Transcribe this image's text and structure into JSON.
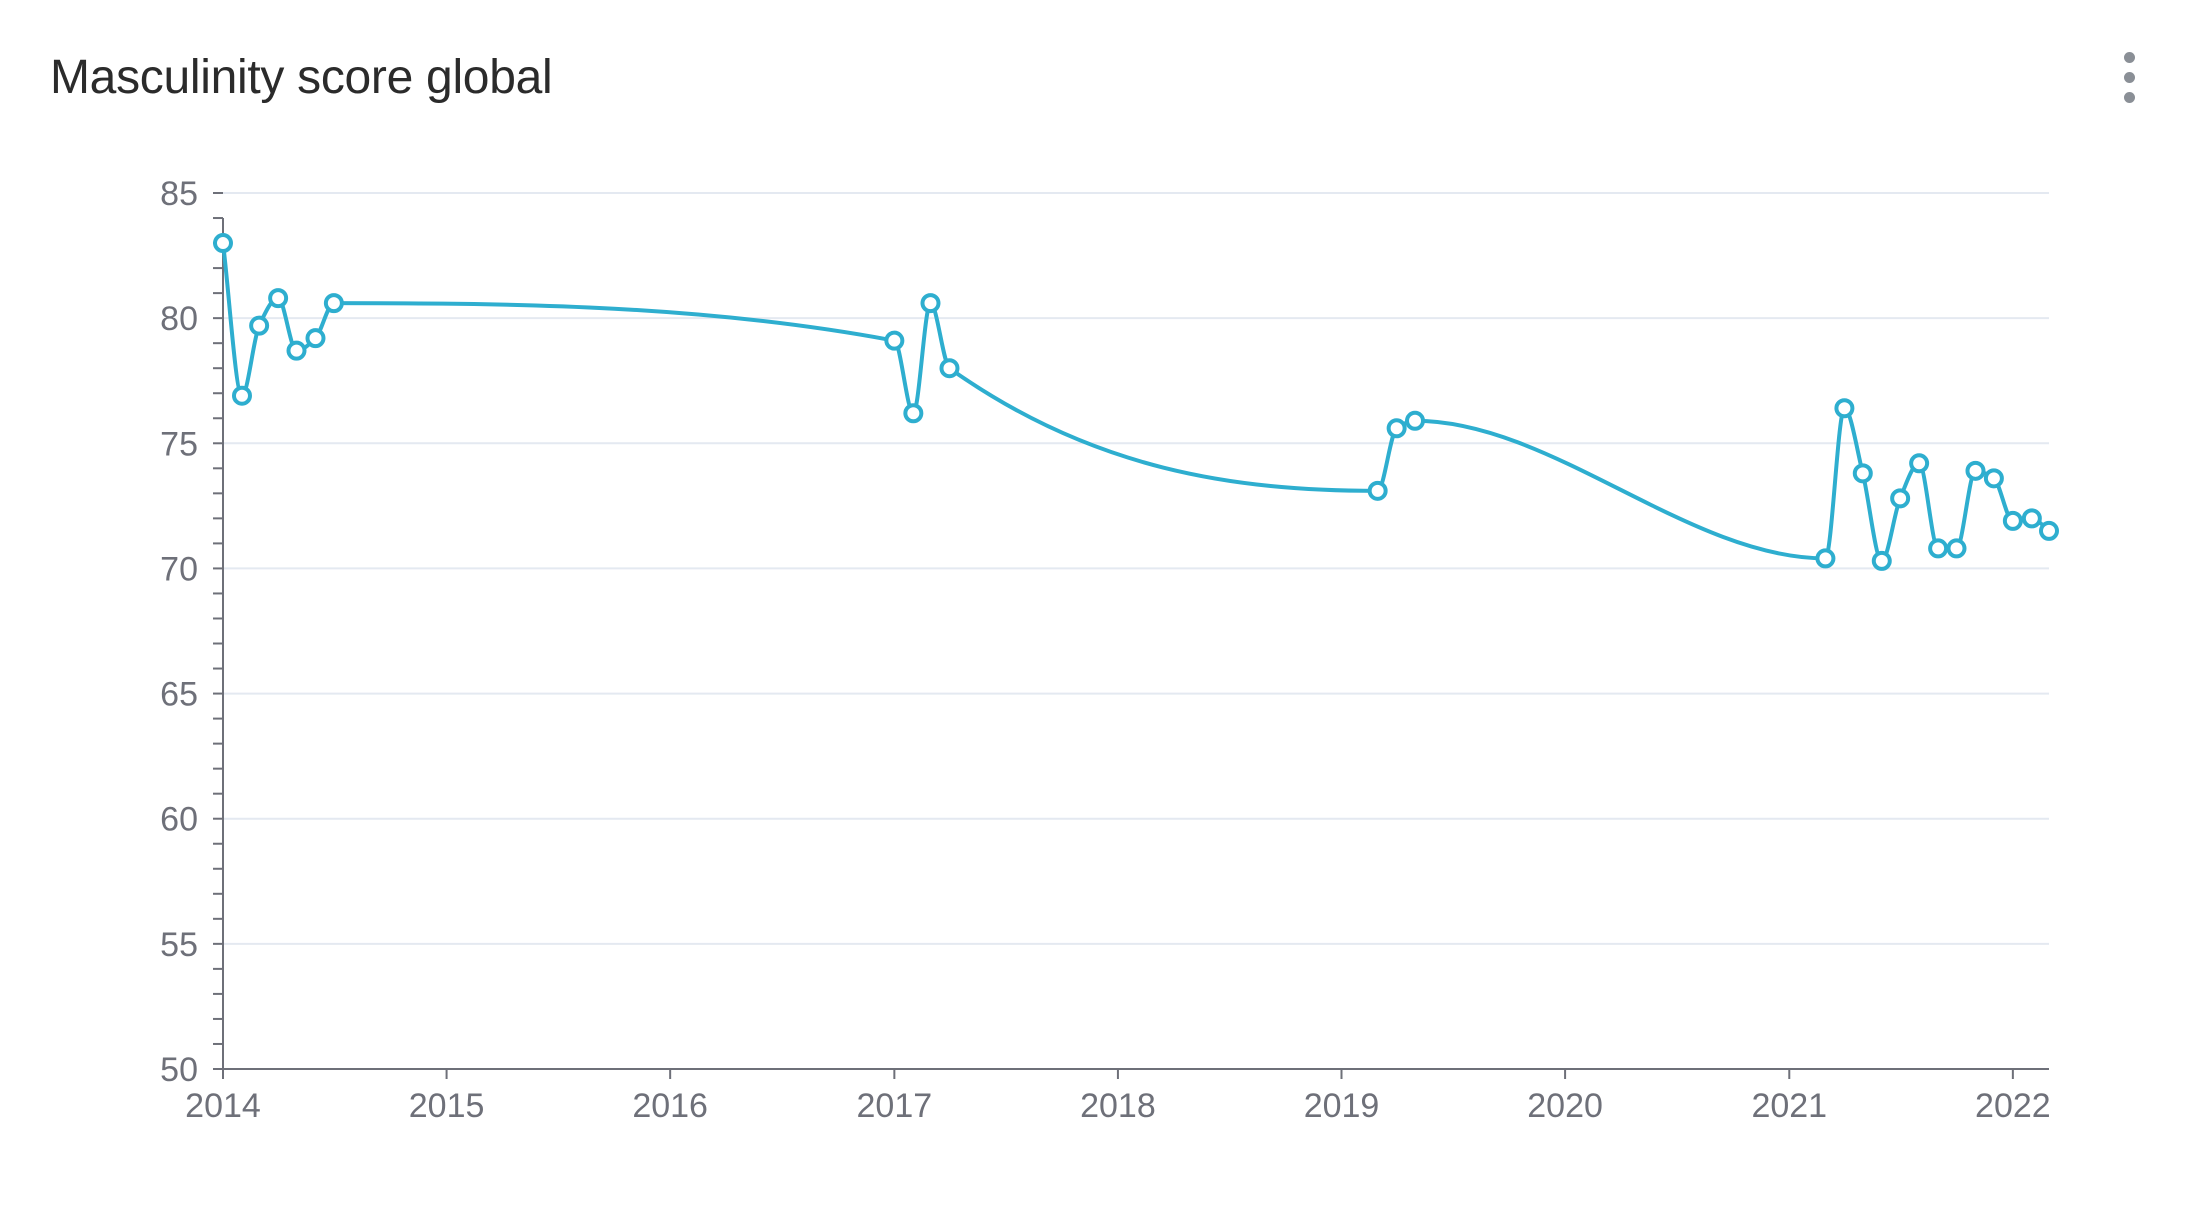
{
  "title": "Masculinity score global",
  "menu": {
    "icon": "more-vertical-icon"
  },
  "colors": {
    "series": "#2eaecf",
    "grid": "#e4e9f1",
    "axis": "#6e7079",
    "title": "#2b2b2b"
  },
  "chart_data": {
    "type": "line",
    "title": "Masculinity score global",
    "xlabel": "",
    "ylabel": "",
    "xlim": [
      "2014-01-01",
      "2022-03-01"
    ],
    "ylim": [
      50,
      85
    ],
    "yticks": [
      50,
      55,
      60,
      65,
      70,
      75,
      80,
      85
    ],
    "xticks": [
      "2014",
      "2015",
      "2016",
      "2017",
      "2018",
      "2019",
      "2020",
      "2021",
      "2022"
    ],
    "grid": true,
    "smooth": true,
    "series": [
      {
        "x": [
          "2014-01-01",
          "2014-02-01",
          "2014-03-01",
          "2014-04-01",
          "2014-05-01",
          "2014-06-01",
          "2014-07-01",
          "2017-01-01",
          "2017-02-01",
          "2017-03-01",
          "2017-04-01",
          "2019-03-01",
          "2019-04-01",
          "2019-05-01",
          "2021-03-01",
          "2021-04-01",
          "2021-05-01",
          "2021-06-01",
          "2021-07-01",
          "2021-08-01",
          "2021-09-01",
          "2021-10-01",
          "2021-11-01",
          "2021-12-01",
          "2022-01-01",
          "2022-02-01",
          "2022-03-01"
        ],
        "values": [
          83.0,
          76.9,
          79.7,
          80.8,
          78.7,
          79.2,
          80.6,
          79.1,
          76.2,
          80.6,
          78.0,
          73.1,
          75.6,
          75.9,
          70.4,
          76.4,
          73.8,
          70.3,
          72.8,
          74.2,
          70.8,
          70.8,
          73.9,
          73.6,
          71.9,
          72.0,
          71.5
        ]
      }
    ]
  }
}
